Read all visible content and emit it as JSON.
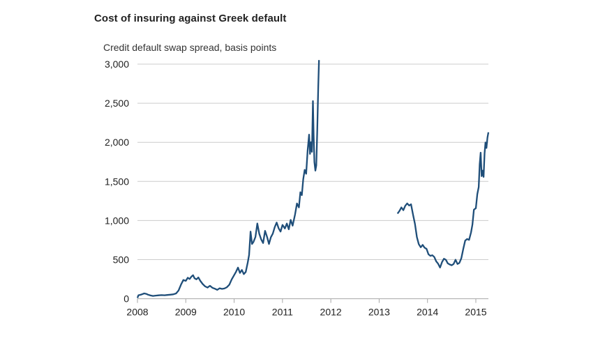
{
  "header": {
    "title": "Cost of insuring against Greek default",
    "subtitle": "Credit default swap spread, basis points"
  },
  "chart_data": {
    "type": "line",
    "title": "Cost of insuring against Greek default",
    "ylabel": "Credit default swap spread, basis points",
    "xlabel": "",
    "legend": "none",
    "grid": "horizontal-only",
    "xlim": [
      2008,
      2015.26
    ],
    "ylim": [
      0,
      3000
    ],
    "x_ticks": [
      {
        "value": 2008,
        "label": "2008"
      },
      {
        "value": 2009,
        "label": "2009"
      },
      {
        "value": 2010,
        "label": "2010"
      },
      {
        "value": 2011,
        "label": "2011"
      },
      {
        "value": 2012,
        "label": "2012"
      },
      {
        "value": 2013,
        "label": "2013"
      },
      {
        "value": 2014,
        "label": "2014"
      },
      {
        "value": 2015,
        "label": "2015"
      }
    ],
    "y_ticks": [
      {
        "value": 0,
        "label": "0"
      },
      {
        "value": 500,
        "label": "500"
      },
      {
        "value": 1000,
        "label": "1,000"
      },
      {
        "value": 1500,
        "label": "1,500"
      },
      {
        "value": 2000,
        "label": "2,000"
      },
      {
        "value": 2500,
        "label": "2,500"
      },
      {
        "value": 3000,
        "label": "3,000"
      }
    ],
    "line_color": "#1f4e79",
    "gridline_color": "#cccccc",
    "axis_color": "#a6a6a6",
    "series": [
      {
        "name": "cds-spread",
        "segments": [
          [
            [
              2008.0,
              10
            ],
            [
              2008.02,
              45
            ],
            [
              2008.06,
              50
            ],
            [
              2008.1,
              58
            ],
            [
              2008.14,
              68
            ],
            [
              2008.18,
              62
            ],
            [
              2008.22,
              52
            ],
            [
              2008.27,
              42
            ],
            [
              2008.32,
              36
            ],
            [
              2008.38,
              40
            ],
            [
              2008.44,
              44
            ],
            [
              2008.5,
              46
            ],
            [
              2008.56,
              45
            ],
            [
              2008.62,
              48
            ],
            [
              2008.68,
              52
            ],
            [
              2008.74,
              56
            ],
            [
              2008.8,
              68
            ],
            [
              2008.85,
              105
            ],
            [
              2008.9,
              180
            ],
            [
              2008.95,
              240
            ],
            [
              2009.0,
              228
            ],
            [
              2009.04,
              268
            ],
            [
              2009.08,
              252
            ],
            [
              2009.12,
              285
            ],
            [
              2009.15,
              300
            ],
            [
              2009.18,
              262
            ],
            [
              2009.22,
              248
            ],
            [
              2009.26,
              272
            ],
            [
              2009.3,
              228
            ],
            [
              2009.35,
              188
            ],
            [
              2009.4,
              158
            ],
            [
              2009.45,
              143
            ],
            [
              2009.5,
              166
            ],
            [
              2009.55,
              140
            ],
            [
              2009.6,
              128
            ],
            [
              2009.65,
              113
            ],
            [
              2009.7,
              134
            ],
            [
              2009.75,
              126
            ],
            [
              2009.8,
              131
            ],
            [
              2009.85,
              147
            ],
            [
              2009.9,
              178
            ],
            [
              2009.95,
              248
            ],
            [
              2010.0,
              302
            ],
            [
              2010.04,
              345
            ],
            [
              2010.08,
              398
            ],
            [
              2010.12,
              330
            ],
            [
              2010.16,
              368
            ],
            [
              2010.2,
              315
            ],
            [
              2010.24,
              342
            ],
            [
              2010.28,
              460
            ],
            [
              2010.31,
              560
            ],
            [
              2010.34,
              858
            ],
            [
              2010.37,
              700
            ],
            [
              2010.4,
              726
            ],
            [
              2010.44,
              790
            ],
            [
              2010.48,
              962
            ],
            [
              2010.52,
              830
            ],
            [
              2010.56,
              758
            ],
            [
              2010.6,
              712
            ],
            [
              2010.64,
              868
            ],
            [
              2010.68,
              792
            ],
            [
              2010.72,
              700
            ],
            [
              2010.76,
              786
            ],
            [
              2010.8,
              832
            ],
            [
              2010.84,
              916
            ],
            [
              2010.88,
              974
            ],
            [
              2010.92,
              902
            ],
            [
              2010.96,
              858
            ],
            [
              2011.0,
              944
            ],
            [
              2011.05,
              898
            ],
            [
              2011.09,
              962
            ],
            [
              2011.13,
              888
            ],
            [
              2011.17,
              1008
            ],
            [
              2011.21,
              934
            ],
            [
              2011.26,
              1078
            ],
            [
              2011.3,
              1218
            ],
            [
              2011.34,
              1168
            ],
            [
              2011.37,
              1362
            ],
            [
              2011.4,
              1324
            ],
            [
              2011.43,
              1528
            ],
            [
              2011.46,
              1648
            ],
            [
              2011.49,
              1598
            ],
            [
              2011.52,
              1895
            ],
            [
              2011.55,
              2098
            ],
            [
              2011.57,
              1852
            ],
            [
              2011.59,
              2002
            ],
            [
              2011.61,
              1878
            ],
            [
              2011.63,
              2528
            ],
            [
              2011.645,
              2096
            ],
            [
              2011.66,
              1748
            ],
            [
              2011.68,
              1638
            ],
            [
              2011.7,
              1704
            ],
            [
              2011.72,
              2152
            ],
            [
              2011.74,
              2702
            ],
            [
              2011.755,
              3052
            ]
          ],
          [
            [
              2013.38,
              1088
            ],
            [
              2013.42,
              1122
            ],
            [
              2013.46,
              1168
            ],
            [
              2013.5,
              1132
            ],
            [
              2013.54,
              1188
            ],
            [
              2013.58,
              1218
            ],
            [
              2013.62,
              1192
            ],
            [
              2013.66,
              1208
            ],
            [
              2013.7,
              1078
            ],
            [
              2013.74,
              958
            ],
            [
              2013.78,
              788
            ],
            [
              2013.82,
              698
            ],
            [
              2013.86,
              658
            ],
            [
              2013.9,
              688
            ],
            [
              2013.94,
              652
            ],
            [
              2013.98,
              638
            ],
            [
              2014.02,
              568
            ],
            [
              2014.06,
              548
            ],
            [
              2014.1,
              556
            ],
            [
              2014.14,
              534
            ],
            [
              2014.18,
              478
            ],
            [
              2014.22,
              448
            ],
            [
              2014.26,
              398
            ],
            [
              2014.3,
              468
            ],
            [
              2014.34,
              512
            ],
            [
              2014.38,
              498
            ],
            [
              2014.42,
              452
            ],
            [
              2014.46,
              438
            ],
            [
              2014.5,
              428
            ],
            [
              2014.54,
              444
            ],
            [
              2014.58,
              498
            ],
            [
              2014.62,
              444
            ],
            [
              2014.66,
              458
            ],
            [
              2014.7,
              518
            ],
            [
              2014.74,
              638
            ],
            [
              2014.78,
              742
            ],
            [
              2014.82,
              764
            ],
            [
              2014.86,
              752
            ],
            [
              2014.9,
              848
            ],
            [
              2014.93,
              948
            ],
            [
              2014.96,
              1138
            ],
            [
              2015.0,
              1158
            ],
            [
              2015.03,
              1338
            ],
            [
              2015.06,
              1428
            ],
            [
              2015.08,
              1718
            ],
            [
              2015.1,
              1868
            ],
            [
              2015.12,
              1568
            ],
            [
              2015.14,
              1638
            ],
            [
              2015.16,
              1558
            ],
            [
              2015.18,
              1858
            ],
            [
              2015.2,
              1998
            ],
            [
              2015.22,
              1928
            ],
            [
              2015.24,
              2058
            ],
            [
              2015.26,
              2128
            ]
          ]
        ]
      }
    ]
  }
}
